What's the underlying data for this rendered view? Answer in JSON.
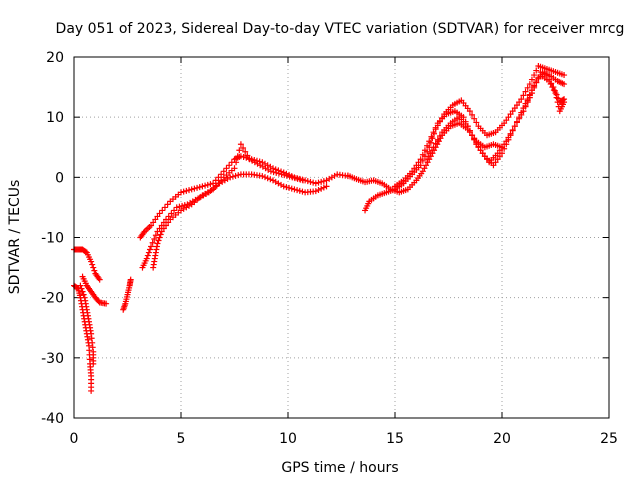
{
  "chart_data": {
    "type": "scatter",
    "title": "Day 051 of 2023, Sidereal Day-to-day VTEC variation (SDTVAR) for receiver mrcg",
    "xlabel": "GPS time / hours",
    "ylabel": "SDTVAR / TECUs",
    "xlim": [
      0,
      25
    ],
    "ylim": [
      -40,
      20
    ],
    "xticks": [
      0,
      5,
      10,
      15,
      20,
      25
    ],
    "yticks": [
      -40,
      -30,
      -20,
      -10,
      0,
      10,
      20
    ],
    "grid": true,
    "marker": "plus",
    "color": "#ff0000",
    "series": [
      {
        "points": [
          [
            0,
            -12
          ],
          [
            0.2,
            -12
          ],
          [
            0.4,
            -12
          ],
          [
            0.6,
            -12.5
          ],
          [
            0.8,
            -14
          ],
          [
            1.0,
            -16
          ],
          [
            1.2,
            -17
          ]
        ]
      },
      {
        "points": [
          [
            0.4,
            -16.5
          ],
          [
            0.6,
            -18
          ],
          [
            0.8,
            -19
          ],
          [
            1.0,
            -20
          ],
          [
            1.2,
            -20.8
          ],
          [
            1.5,
            -21
          ]
        ]
      },
      {
        "points": [
          [
            0,
            -18
          ],
          [
            0.2,
            -18.5
          ],
          [
            0.3,
            -20
          ],
          [
            0.4,
            -22
          ],
          [
            0.5,
            -24
          ],
          [
            0.6,
            -26
          ],
          [
            0.7,
            -28
          ],
          [
            0.75,
            -31
          ],
          [
            0.8,
            -33
          ],
          [
            0.8,
            -35.5
          ]
        ]
      },
      {
        "points": [
          [
            0.3,
            -18
          ],
          [
            0.5,
            -20
          ],
          [
            0.6,
            -22
          ],
          [
            0.7,
            -24
          ],
          [
            0.8,
            -26
          ],
          [
            0.9,
            -29
          ],
          [
            0.9,
            -31
          ]
        ]
      },
      {
        "points": [
          [
            2.3,
            -22
          ],
          [
            2.4,
            -21
          ],
          [
            2.5,
            -19.5
          ],
          [
            2.6,
            -18
          ],
          [
            2.65,
            -17
          ]
        ]
      },
      {
        "points": [
          [
            3.1,
            -10
          ],
          [
            3.3,
            -9
          ],
          [
            3.6,
            -8
          ],
          [
            4.0,
            -6
          ],
          [
            4.5,
            -4
          ],
          [
            5.0,
            -2.5
          ],
          [
            5.5,
            -2
          ],
          [
            6.0,
            -1.5
          ],
          [
            6.5,
            -1
          ],
          [
            7.0,
            1
          ],
          [
            7.5,
            3
          ],
          [
            7.8,
            3.5
          ],
          [
            8.3,
            3
          ],
          [
            8.8,
            2.5
          ],
          [
            9.3,
            1.5
          ],
          [
            9.8,
            0.8
          ],
          [
            10.3,
            0
          ],
          [
            10.8,
            -0.5
          ],
          [
            11.3,
            -1
          ],
          [
            11.8,
            -0.5
          ],
          [
            12.3,
            0.5
          ],
          [
            12.8,
            0.2
          ]
        ]
      },
      {
        "points": [
          [
            3.2,
            -15
          ],
          [
            3.4,
            -13.5
          ],
          [
            3.6,
            -11.5
          ],
          [
            3.9,
            -9
          ],
          [
            4.3,
            -7
          ],
          [
            4.8,
            -5
          ],
          [
            5.3,
            -4.5
          ],
          [
            5.8,
            -3.5
          ],
          [
            6.3,
            -2.5
          ],
          [
            6.8,
            -1
          ],
          [
            7.3,
            0
          ],
          [
            7.8,
            0.5
          ],
          [
            8.3,
            0.5
          ],
          [
            8.8,
            0.2
          ],
          [
            9.3,
            -0.5
          ],
          [
            9.8,
            -1.5
          ],
          [
            10.3,
            -2
          ],
          [
            10.8,
            -2.5
          ],
          [
            11.3,
            -2.3
          ],
          [
            11.8,
            -1.5
          ]
        ]
      },
      {
        "points": [
          [
            3.7,
            -15
          ],
          [
            3.8,
            -13
          ],
          [
            3.9,
            -11
          ],
          [
            4.1,
            -9
          ],
          [
            4.5,
            -7
          ],
          [
            5.0,
            -5.5
          ],
          [
            5.5,
            -4.5
          ],
          [
            6.0,
            -3
          ],
          [
            6.5,
            -2
          ],
          [
            7.0,
            0
          ],
          [
            7.5,
            1.5
          ],
          [
            7.8,
            5.5
          ],
          [
            8.2,
            3
          ],
          [
            8.7,
            2
          ],
          [
            9.2,
            1
          ],
          [
            9.7,
            0.5
          ],
          [
            10.2,
            0
          ],
          [
            10.7,
            -0.5
          ]
        ]
      },
      {
        "points": [
          [
            12.8,
            0.3
          ],
          [
            13.2,
            -0.3
          ],
          [
            13.6,
            -0.8
          ],
          [
            14.0,
            -0.5
          ],
          [
            14.4,
            -1
          ],
          [
            14.8,
            -2
          ],
          [
            15.2,
            -2.5
          ],
          [
            15.6,
            -2
          ],
          [
            16.0,
            -0.5
          ],
          [
            16.3,
            1
          ],
          [
            16.6,
            3
          ],
          [
            16.9,
            5
          ],
          [
            17.2,
            7
          ],
          [
            17.6,
            8.5
          ],
          [
            18.0,
            9
          ],
          [
            18.4,
            8
          ],
          [
            18.8,
            6
          ],
          [
            19.2,
            5
          ],
          [
            19.6,
            5.5
          ],
          [
            20.0,
            5
          ]
        ]
      },
      {
        "points": [
          [
            13.6,
            -5.5
          ],
          [
            13.8,
            -4
          ],
          [
            14.2,
            -3
          ],
          [
            14.6,
            -2.5
          ],
          [
            15.0,
            -2
          ],
          [
            15.4,
            -1
          ],
          [
            15.8,
            0.5
          ],
          [
            16.2,
            2
          ],
          [
            16.6,
            5
          ],
          [
            16.9,
            8
          ],
          [
            17.3,
            10.5
          ],
          [
            17.7,
            12
          ],
          [
            18.1,
            12.8
          ],
          [
            18.5,
            11
          ],
          [
            18.9,
            8.5
          ],
          [
            19.3,
            7
          ],
          [
            19.7,
            7.5
          ],
          [
            20.1,
            9
          ],
          [
            20.5,
            11
          ],
          [
            20.9,
            13
          ],
          [
            21.3,
            15.5
          ],
          [
            21.7,
            18.5
          ],
          [
            22.1,
            18
          ],
          [
            22.5,
            17.5
          ],
          [
            22.9,
            17
          ]
        ]
      },
      {
        "points": [
          [
            15.0,
            -1.5
          ],
          [
            15.4,
            -0.5
          ],
          [
            15.8,
            1
          ],
          [
            16.2,
            3
          ],
          [
            16.6,
            6
          ],
          [
            17.0,
            9
          ],
          [
            17.4,
            10.5
          ],
          [
            17.8,
            11
          ],
          [
            18.2,
            10
          ],
          [
            18.6,
            7
          ],
          [
            19.0,
            4.5
          ],
          [
            19.4,
            2.5
          ],
          [
            19.8,
            4
          ],
          [
            20.2,
            6
          ],
          [
            20.6,
            8.5
          ],
          [
            21.0,
            11
          ],
          [
            21.4,
            14
          ],
          [
            21.8,
            17.5
          ],
          [
            22.2,
            17
          ],
          [
            22.6,
            16
          ],
          [
            22.9,
            15.5
          ]
        ]
      },
      {
        "points": [
          [
            16.5,
            3
          ],
          [
            16.8,
            5
          ],
          [
            17.2,
            7.5
          ],
          [
            17.6,
            9
          ],
          [
            18.0,
            10
          ],
          [
            18.4,
            8.5
          ],
          [
            18.8,
            5.5
          ],
          [
            19.2,
            3.5
          ],
          [
            19.6,
            2
          ],
          [
            20.0,
            4
          ],
          [
            20.4,
            7
          ],
          [
            20.8,
            10
          ],
          [
            21.2,
            13
          ],
          [
            21.6,
            16
          ],
          [
            22.0,
            17.5
          ],
          [
            22.4,
            15
          ],
          [
            22.7,
            12.5
          ],
          [
            22.9,
            13
          ]
        ]
      },
      {
        "points": [
          [
            21.0,
            11
          ],
          [
            21.4,
            14.5
          ],
          [
            21.8,
            17
          ],
          [
            22.2,
            16
          ],
          [
            22.5,
            14
          ],
          [
            22.7,
            11
          ],
          [
            22.9,
            12.5
          ]
        ]
      }
    ]
  }
}
